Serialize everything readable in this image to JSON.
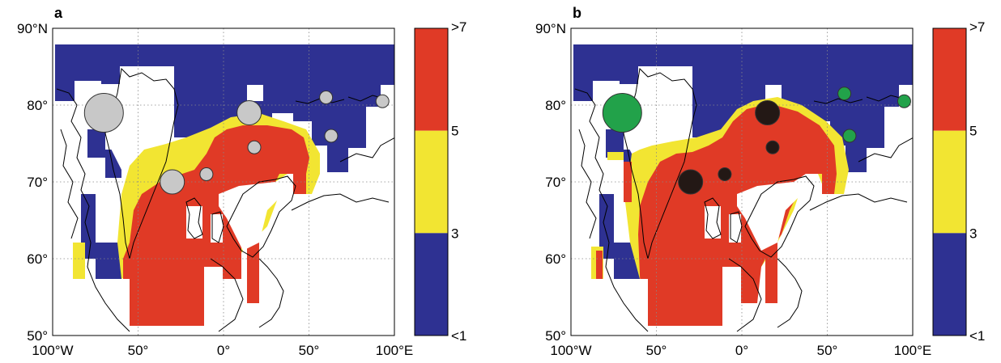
{
  "colors": {
    "blue": "#2e3192",
    "red": "#e03a26",
    "yellow": "#f2e532",
    "gray_marker": "#c8c8c8",
    "green_marker": "#22a24a",
    "black_marker": "#231815",
    "coast": "#000000"
  },
  "axes": {
    "y_ticks": [
      "90°N",
      "80°",
      "70°",
      "60°",
      "50°"
    ],
    "x_ticks": [
      "100°W",
      "50°",
      "0°",
      "50°",
      "100°E"
    ]
  },
  "colorbar": {
    "labels": [
      ">7",
      "5",
      "3",
      "<1"
    ],
    "bands": [
      "red",
      "yellow",
      "blue"
    ]
  },
  "panels": [
    {
      "label": "a",
      "marker_color": "gray",
      "markers": [
        {
          "lon": -70,
          "lat": 79,
          "size": "large"
        },
        {
          "lon": 15,
          "lat": 79,
          "size": "medium"
        },
        {
          "lon": -30,
          "lat": 70,
          "size": "medium"
        },
        {
          "lon": -10,
          "lat": 71,
          "size": "small"
        },
        {
          "lon": 18,
          "lat": 74.5,
          "size": "small"
        },
        {
          "lon": 60,
          "lat": 81,
          "size": "small"
        },
        {
          "lon": 93,
          "lat": 80.5,
          "size": "small"
        },
        {
          "lon": 63,
          "lat": 76,
          "size": "small"
        }
      ]
    },
    {
      "label": "b",
      "marker_color": "mixed",
      "markers": [
        {
          "lon": -70,
          "lat": 79,
          "size": "large",
          "color": "green"
        },
        {
          "lon": 15,
          "lat": 79,
          "size": "medium",
          "color": "black"
        },
        {
          "lon": -30,
          "lat": 70,
          "size": "medium",
          "color": "black"
        },
        {
          "lon": -10,
          "lat": 71,
          "size": "small",
          "color": "black"
        },
        {
          "lon": 18,
          "lat": 74.5,
          "size": "small",
          "color": "black"
        },
        {
          "lon": 60,
          "lat": 81.5,
          "size": "small",
          "color": "green"
        },
        {
          "lon": 95,
          "lat": 80.5,
          "size": "small",
          "color": "green"
        },
        {
          "lon": 63,
          "lat": 76,
          "size": "small",
          "color": "green"
        }
      ]
    }
  ]
}
